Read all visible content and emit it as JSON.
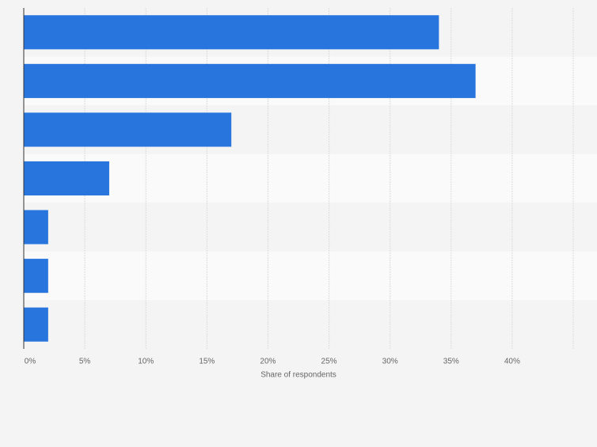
{
  "chart_data": {
    "type": "bar",
    "orientation": "horizontal",
    "categories": [
      null,
      null,
      null,
      null,
      null,
      null,
      null
    ],
    "values": [
      34,
      37,
      17,
      7,
      2,
      2,
      2
    ],
    "color": "#2876dd",
    "xlabel": "Share of respondents",
    "xlim": [
      0,
      45
    ],
    "xticks": [
      {
        "value": 0,
        "label": "0%"
      },
      {
        "value": 5,
        "label": "5%"
      },
      {
        "value": 10,
        "label": "10%"
      },
      {
        "value": 15,
        "label": "15%"
      },
      {
        "value": 20,
        "label": "20%"
      },
      {
        "value": 25,
        "label": "25%"
      },
      {
        "value": 30,
        "label": "30%"
      },
      {
        "value": 35,
        "label": "35%"
      },
      {
        "value": 40,
        "label": "40%"
      }
    ],
    "grid": true
  }
}
